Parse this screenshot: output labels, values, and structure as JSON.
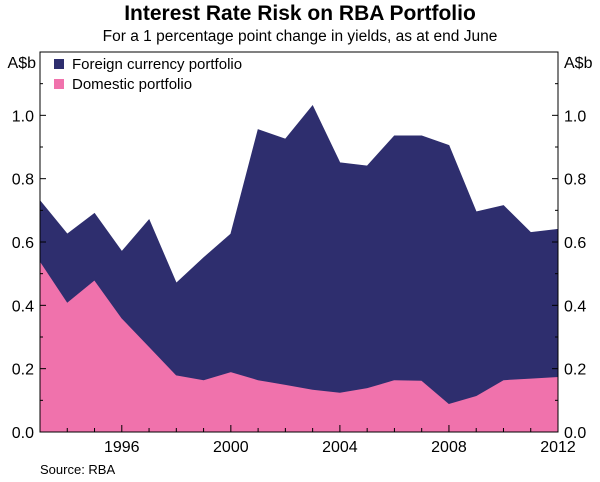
{
  "chart_data": {
    "type": "area",
    "title": "Interest Rate Risk on RBA Portfolio",
    "subtitle": "For a 1 percentage point change in yields, as at end June",
    "ylabel_left": "A$b",
    "ylabel_right": "A$b",
    "ylim": [
      0,
      1.2
    ],
    "yticks": [
      0.0,
      0.2,
      0.4,
      0.6,
      0.8,
      1.0
    ],
    "ytick_labels": [
      "0.0",
      "0.2",
      "0.4",
      "0.6",
      "0.8",
      "1.0"
    ],
    "xlim": [
      1993,
      2012
    ],
    "xtick_labels": [
      "1996",
      "2000",
      "2004",
      "2008",
      "2012"
    ],
    "xtick_years": [
      1996,
      2000,
      2004,
      2008,
      2012
    ],
    "x": [
      1993,
      1994,
      1995,
      1996,
      1997,
      1998,
      1999,
      2000,
      2001,
      2002,
      2003,
      2004,
      2005,
      2006,
      2007,
      2008,
      2009,
      2010,
      2011,
      2012
    ],
    "series": [
      {
        "name": "Domestic portfolio",
        "color": "#f072ac",
        "values": [
          0.54,
          0.41,
          0.48,
          0.36,
          0.27,
          0.18,
          0.165,
          0.19,
          0.165,
          0.15,
          0.135,
          0.125,
          0.14,
          0.165,
          0.163,
          0.09,
          0.115,
          0.165,
          0.17,
          0.175
        ]
      },
      {
        "name": "Foreign currency portfolio",
        "color": "#2e2e6e",
        "values": [
          0.19,
          0.215,
          0.21,
          0.21,
          0.4,
          0.29,
          0.385,
          0.435,
          0.79,
          0.775,
          0.895,
          0.725,
          0.7,
          0.77,
          0.772,
          0.815,
          0.58,
          0.55,
          0.46,
          0.465
        ]
      }
    ],
    "stacked": true,
    "legend_position": "top-left",
    "source": "Source: RBA"
  }
}
